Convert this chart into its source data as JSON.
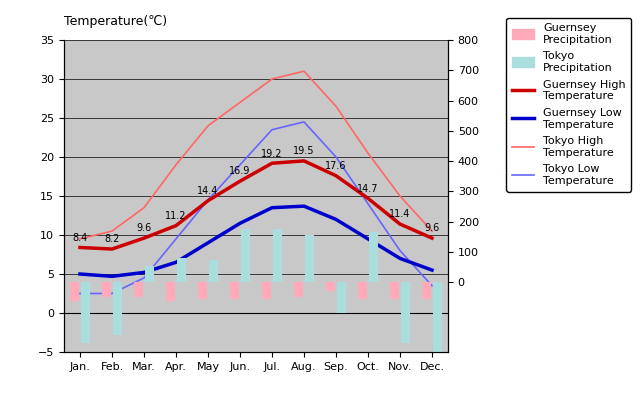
{
  "months": [
    "Jan.",
    "Feb.",
    "Mar.",
    "Apr.",
    "May",
    "Jun.",
    "Jul.",
    "Aug.",
    "Sep.",
    "Oct.",
    "Nov.",
    "Dec."
  ],
  "guernsey_high": [
    8.4,
    8.2,
    9.6,
    11.2,
    14.4,
    16.9,
    19.2,
    19.5,
    17.6,
    14.7,
    11.4,
    9.6
  ],
  "guernsey_low": [
    5.0,
    4.7,
    5.2,
    6.5,
    9.0,
    11.5,
    13.5,
    13.7,
    12.0,
    9.5,
    7.0,
    5.5
  ],
  "tokyo_high": [
    9.5,
    10.5,
    13.5,
    19.0,
    24.0,
    27.0,
    30.0,
    31.0,
    26.5,
    20.5,
    15.0,
    10.5
  ],
  "tokyo_low": [
    2.5,
    2.5,
    4.5,
    9.5,
    14.5,
    19.0,
    23.5,
    24.5,
    20.0,
    14.0,
    8.0,
    3.5
  ],
  "guernsey_precip_mm": [
    -60,
    -50,
    -50,
    -60,
    -55,
    -55,
    -55,
    -50,
    -30,
    -55,
    -55,
    -55
  ],
  "tokyo_precip_mm": [
    -200,
    -175,
    55,
    80,
    75,
    175,
    175,
    155,
    -100,
    165,
    -200,
    -230
  ],
  "temp_ylim": [
    -5,
    35
  ],
  "precip_ylim": [
    -230,
    800
  ],
  "left_yticks": [
    -5,
    0,
    5,
    10,
    15,
    20,
    25,
    30,
    35
  ],
  "right_yticks": [
    0,
    100,
    200,
    300,
    400,
    500,
    600,
    700,
    800
  ],
  "left_ylabel": "Temperature(℃)",
  "bg_color": "#c8c8c8",
  "guernsey_precip_color": "#ffaabb",
  "tokyo_precip_color": "#aadddd",
  "guernsey_high_color": "#cc0000",
  "guernsey_low_color": "#0000cc",
  "tokyo_high_color": "#ff6666",
  "tokyo_low_color": "#6666ff",
  "guernsey_high_lw": 2.5,
  "guernsey_low_lw": 2.5,
  "tokyo_high_lw": 1.2,
  "tokyo_low_lw": 1.2,
  "bar_width": 0.32,
  "label_fontsize": 7,
  "axis_fontsize": 9,
  "tick_fontsize": 8,
  "legend_fontsize": 8
}
